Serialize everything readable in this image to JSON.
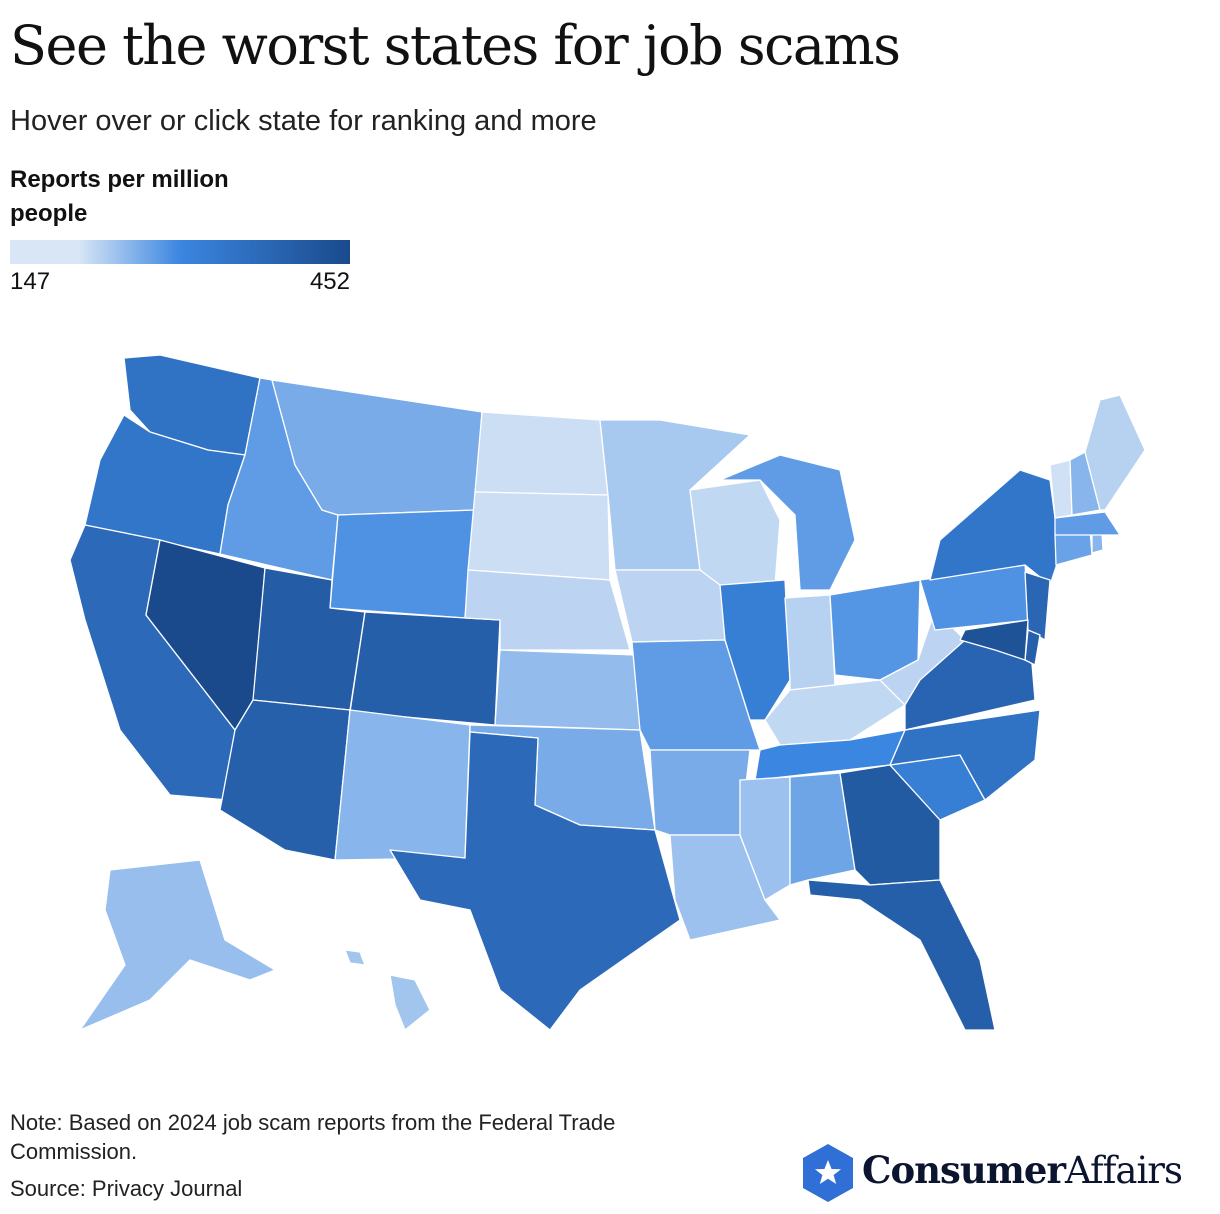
{
  "header": {
    "title": "See the worst states for job scams",
    "subtitle": "Hover over or click state for ranking and more"
  },
  "legend": {
    "title": "Reports per million people",
    "min_label": "147",
    "max_label": "452",
    "min": 147,
    "max": 452,
    "color_stops": [
      "#d9e6f6",
      "#3b86e0",
      "#1a4a8c"
    ]
  },
  "map": {
    "type": "choropleth",
    "region": "United States",
    "states": [
      {
        "abbr": "WA",
        "value": 350
      },
      {
        "abbr": "OR",
        "value": 340
      },
      {
        "abbr": "CA",
        "value": 370
      },
      {
        "abbr": "NV",
        "value": 452
      },
      {
        "abbr": "ID",
        "value": 265
      },
      {
        "abbr": "MT",
        "value": 240
      },
      {
        "abbr": "WY",
        "value": 280
      },
      {
        "abbr": "UT",
        "value": 405
      },
      {
        "abbr": "AZ",
        "value": 395
      },
      {
        "abbr": "CO",
        "value": 400
      },
      {
        "abbr": "NM",
        "value": 225
      },
      {
        "abbr": "ND",
        "value": 160
      },
      {
        "abbr": "SD",
        "value": 160
      },
      {
        "abbr": "NE",
        "value": 175
      },
      {
        "abbr": "KS",
        "value": 215
      },
      {
        "abbr": "OK",
        "value": 240
      },
      {
        "abbr": "TX",
        "value": 370
      },
      {
        "abbr": "MN",
        "value": 195
      },
      {
        "abbr": "IA",
        "value": 175
      },
      {
        "abbr": "MO",
        "value": 265
      },
      {
        "abbr": "AR",
        "value": 240
      },
      {
        "abbr": "LA",
        "value": 205
      },
      {
        "abbr": "WI",
        "value": 170
      },
      {
        "abbr": "IL",
        "value": 320
      },
      {
        "abbr": "MI",
        "value": 265
      },
      {
        "abbr": "IN",
        "value": 180
      },
      {
        "abbr": "OH",
        "value": 275
      },
      {
        "abbr": "KY",
        "value": 170
      },
      {
        "abbr": "TN",
        "value": 300
      },
      {
        "abbr": "MS",
        "value": 205
      },
      {
        "abbr": "AL",
        "value": 250
      },
      {
        "abbr": "GA",
        "value": 410
      },
      {
        "abbr": "FL",
        "value": 400
      },
      {
        "abbr": "SC",
        "value": 320
      },
      {
        "abbr": "NC",
        "value": 350
      },
      {
        "abbr": "VA",
        "value": 385
      },
      {
        "abbr": "WV",
        "value": 175
      },
      {
        "abbr": "PA",
        "value": 280
      },
      {
        "abbr": "NY",
        "value": 340
      },
      {
        "abbr": "NJ",
        "value": 380
      },
      {
        "abbr": "DE",
        "value": 395
      },
      {
        "abbr": "MD",
        "value": 430
      },
      {
        "abbr": "CT",
        "value": 255
      },
      {
        "abbr": "RI",
        "value": 225
      },
      {
        "abbr": "MA",
        "value": 265
      },
      {
        "abbr": "VT",
        "value": 155
      },
      {
        "abbr": "NH",
        "value": 225
      },
      {
        "abbr": "ME",
        "value": 180
      },
      {
        "abbr": "AK",
        "value": 210
      },
      {
        "abbr": "HI",
        "value": 200
      }
    ]
  },
  "footer": {
    "note": "Note: Based on 2024 job scam reports from the Federal Trade Commission.",
    "source": "Source: Privacy Journal"
  },
  "brand": {
    "name_bold": "Consumer",
    "name_light": "Affairs",
    "logo_color": "#2f6fd6"
  }
}
